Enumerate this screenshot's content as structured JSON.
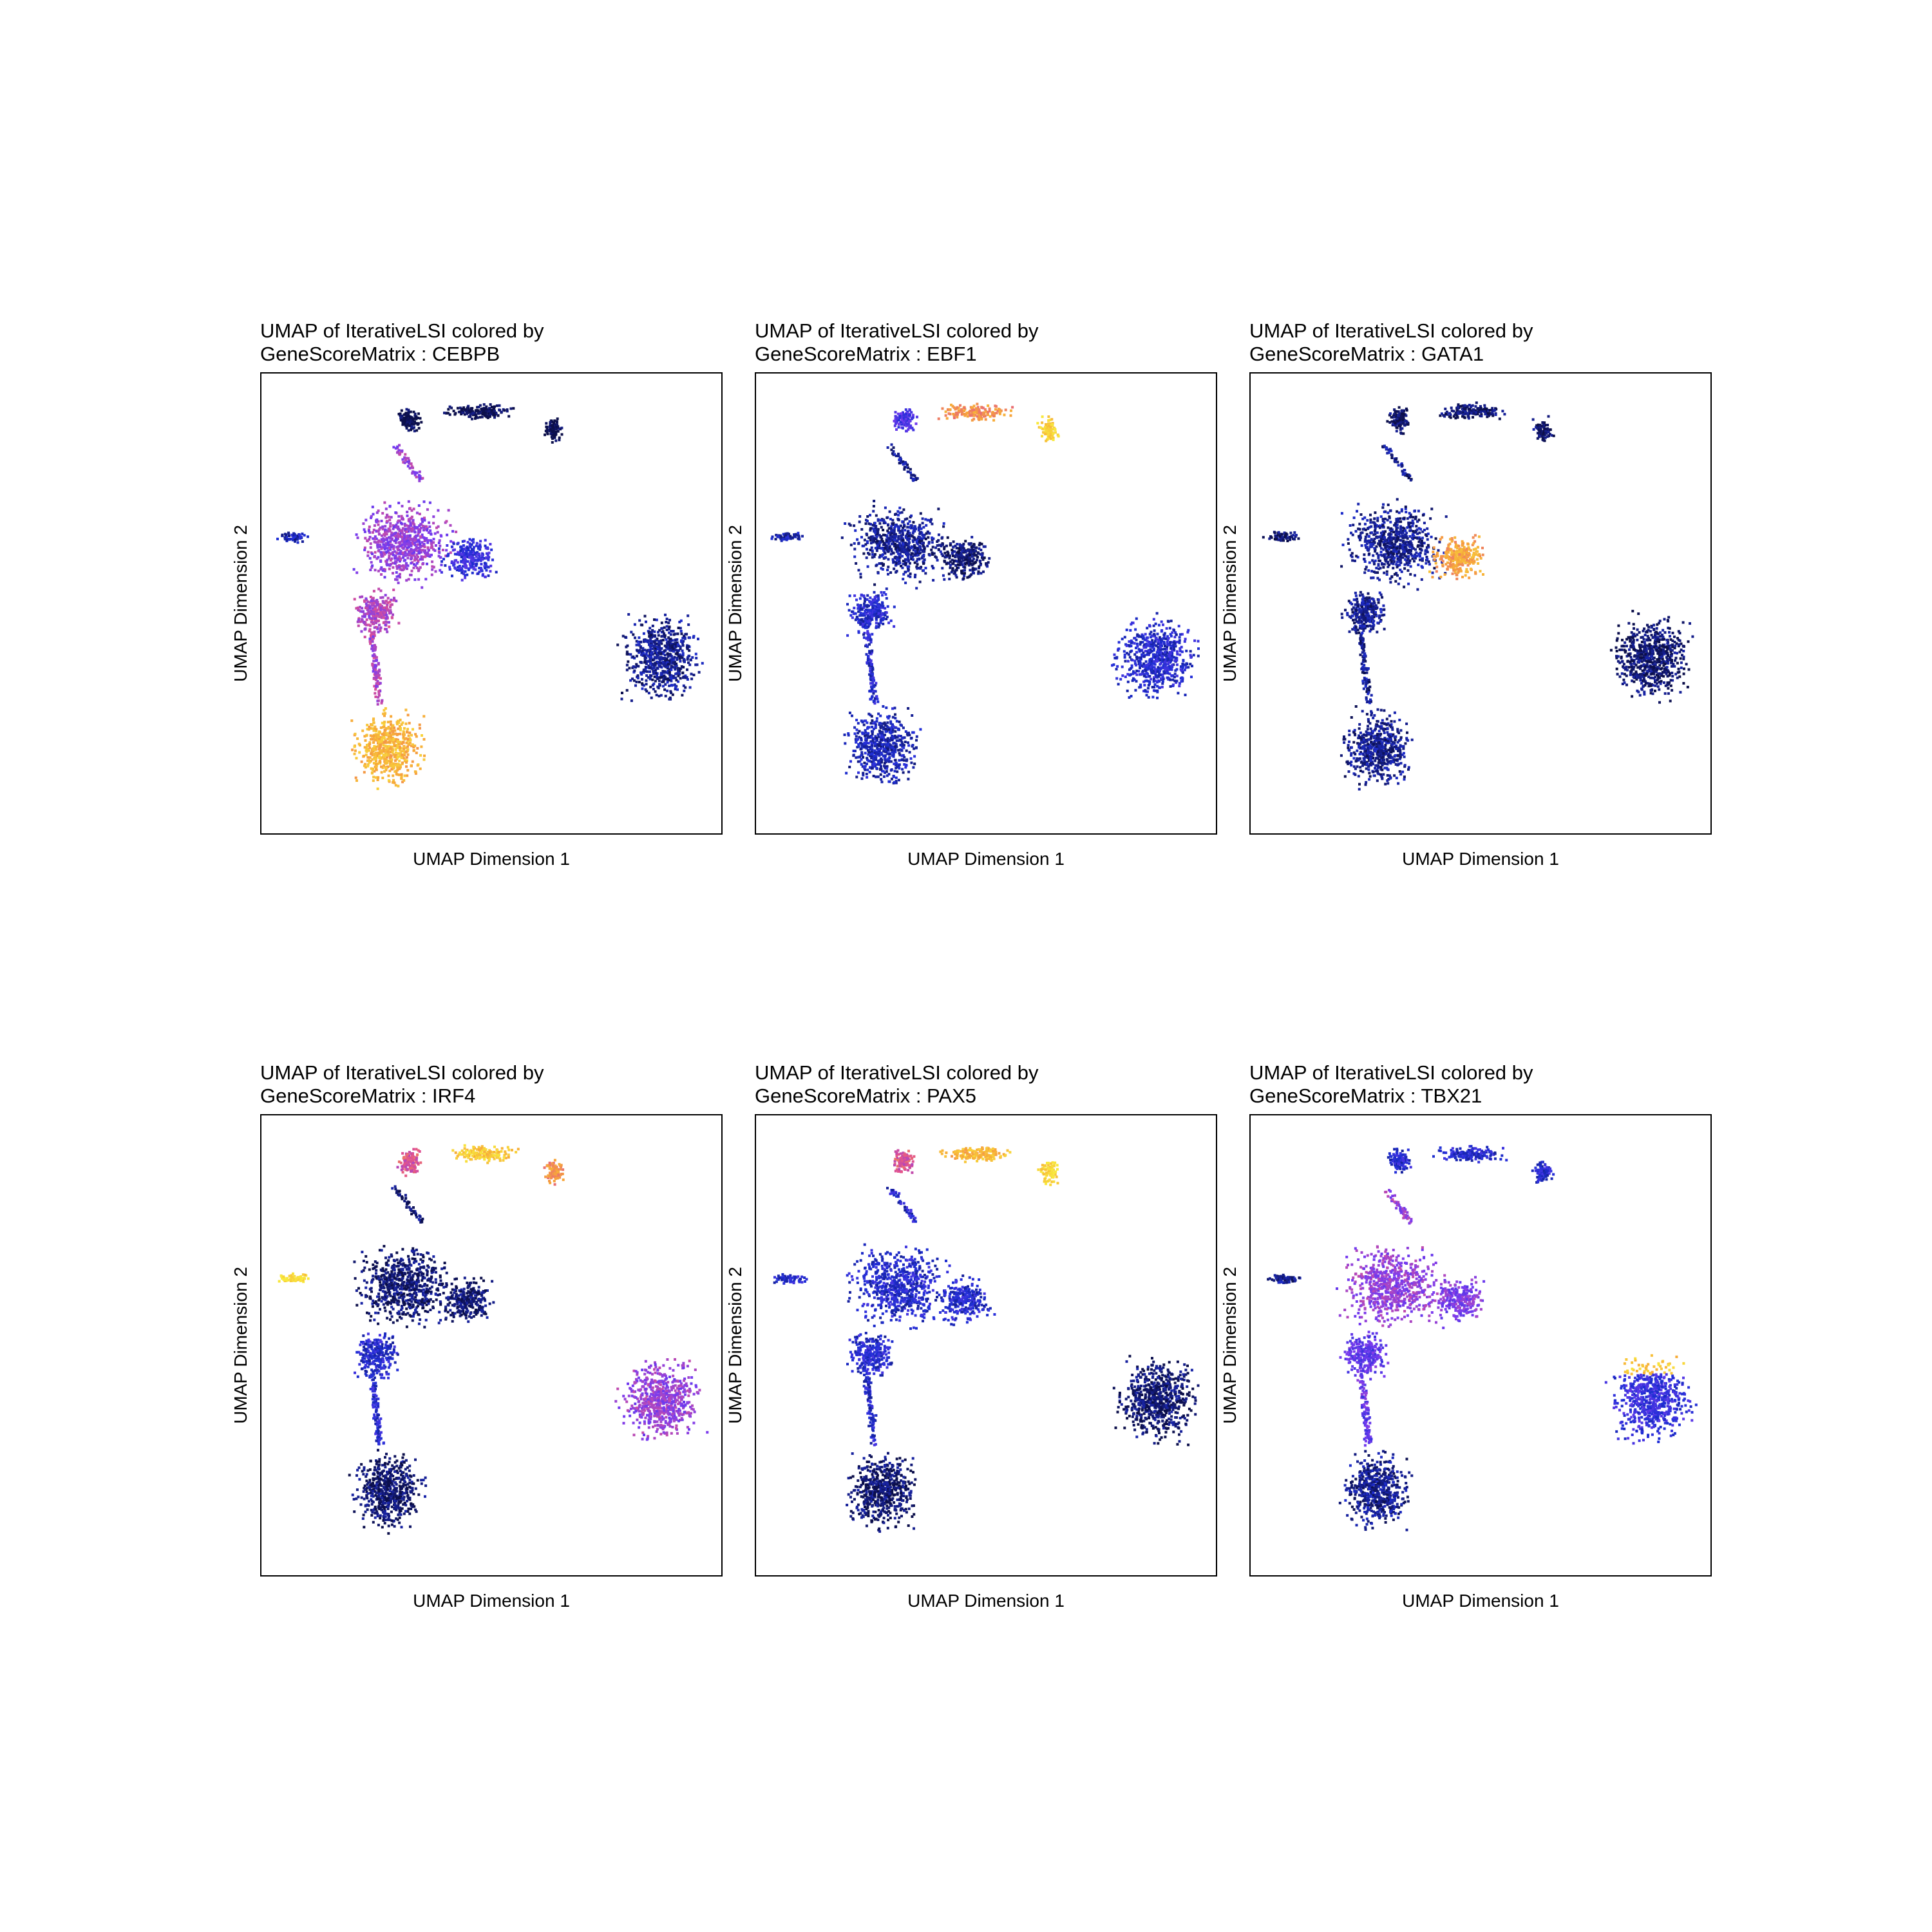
{
  "chart_data": [
    {
      "type": "scatter",
      "title_line1": "UMAP of IterativeLSI colored by",
      "title_line2": "GeneScoreMatrix : CEBPB",
      "xlabel": "UMAP Dimension 1",
      "ylabel": "UMAP Dimension 2",
      "colorscale": [
        "#0c0f4a",
        "#1f2fd6",
        "#7a3cf0",
        "#e2518f",
        "#f7a53a",
        "#f8e93c"
      ],
      "cluster_levels": {
        "top_left": 0.0,
        "top_mid": 0.0,
        "top_right": 0.0,
        "left_tip": 0.15,
        "center_upper": 0.45,
        "center_right": 0.25,
        "center_lower": 0.5,
        "bottom": 0.85,
        "right_blob": 0.1
      }
    },
    {
      "type": "scatter",
      "title_line1": "UMAP of IterativeLSI colored by",
      "title_line2": "GeneScoreMatrix : EBF1",
      "xlabel": "UMAP Dimension 1",
      "ylabel": "UMAP Dimension 2",
      "colorscale": [
        "#0c0f4a",
        "#1f2fd6",
        "#7a3cf0",
        "#e2518f",
        "#f7a53a",
        "#f8e93c"
      ],
      "cluster_levels": {
        "top_left": 0.3,
        "top_mid": 0.75,
        "top_right": 0.95,
        "left_tip": 0.15,
        "center_upper": 0.1,
        "center_right": 0.05,
        "center_lower": 0.2,
        "bottom": 0.15,
        "right_blob": 0.2
      }
    },
    {
      "type": "scatter",
      "title_line1": "UMAP of IterativeLSI colored by",
      "title_line2": "GeneScoreMatrix : GATA1",
      "xlabel": "UMAP Dimension 1",
      "ylabel": "UMAP Dimension 2",
      "colorscale": [
        "#0c0f4a",
        "#1f2fd6",
        "#7a3cf0",
        "#e2518f",
        "#f7a53a",
        "#f8e93c"
      ],
      "cluster_levels": {
        "top_left": 0.05,
        "top_mid": 0.05,
        "top_right": 0.05,
        "left_tip": 0.05,
        "center_upper": 0.1,
        "center_right": 0.8,
        "center_lower": 0.1,
        "bottom": 0.1,
        "right_blob": 0.05
      }
    },
    {
      "type": "scatter",
      "title_line1": "UMAP of IterativeLSI colored by",
      "title_line2": "GeneScoreMatrix : IRF4",
      "xlabel": "UMAP Dimension 1",
      "ylabel": "UMAP Dimension 2",
      "colorscale": [
        "#0c0f4a",
        "#1f2fd6",
        "#7a3cf0",
        "#e2518f",
        "#f7a53a",
        "#f8e93c"
      ],
      "cluster_levels": {
        "top_left": 0.6,
        "top_mid": 0.9,
        "top_right": 0.75,
        "left_tip": 0.95,
        "center_upper": 0.05,
        "center_right": 0.05,
        "center_lower": 0.2,
        "bottom": 0.05,
        "right_blob": 0.45
      }
    },
    {
      "type": "scatter",
      "title_line1": "UMAP of IterativeLSI colored by",
      "title_line2": "GeneScoreMatrix : PAX5",
      "xlabel": "UMAP Dimension 1",
      "ylabel": "UMAP Dimension 2",
      "colorscale": [
        "#0c0f4a",
        "#1f2fd6",
        "#7a3cf0",
        "#e2518f",
        "#f7a53a",
        "#f8e93c"
      ],
      "cluster_levels": {
        "top_left": 0.6,
        "top_mid": 0.85,
        "top_right": 0.95,
        "left_tip": 0.2,
        "center_upper": 0.2,
        "center_right": 0.2,
        "center_lower": 0.2,
        "bottom": 0.05,
        "right_blob": 0.05
      }
    },
    {
      "type": "scatter",
      "title_line1": "UMAP of IterativeLSI colored by",
      "title_line2": "GeneScoreMatrix : TBX21",
      "xlabel": "UMAP Dimension 1",
      "ylabel": "UMAP Dimension 2",
      "colorscale": [
        "#0c0f4a",
        "#1f2fd6",
        "#7a3cf0",
        "#e2518f",
        "#f7a53a",
        "#f8e93c"
      ],
      "cluster_levels": {
        "top_left": 0.2,
        "top_mid": 0.2,
        "top_right": 0.2,
        "left_tip": 0.1,
        "center_upper": 0.45,
        "center_right": 0.4,
        "center_lower": 0.35,
        "bottom": 0.1,
        "right_blob": 0.25,
        "right_blob_top": 0.9
      }
    }
  ]
}
